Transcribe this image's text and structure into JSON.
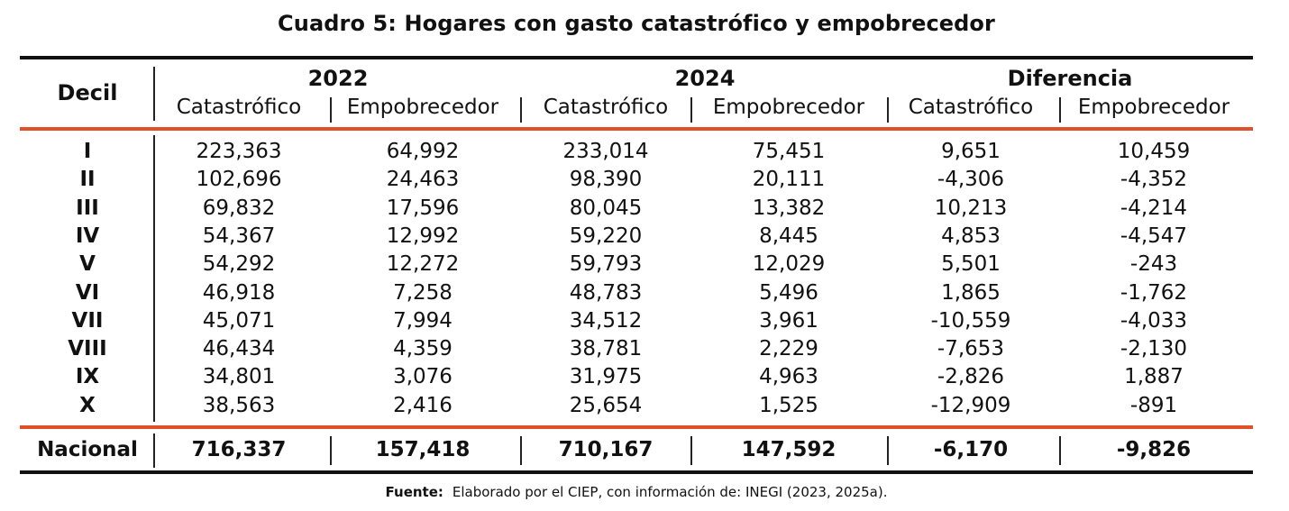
{
  "title": "Cuadro 5: Hogares con gasto catastrófico y empobrecedor",
  "header": {
    "decil": "Decil",
    "groups": [
      "2022",
      "2024",
      "Diferencia"
    ],
    "subcolumns": [
      "Catastrófico",
      "Empobrecedor",
      "Catastrófico",
      "Empobrecedor",
      "Catastrófico",
      "Empobrecedor"
    ]
  },
  "rows": [
    {
      "decil": "I",
      "values": [
        "223,363",
        "64,992",
        "233,014",
        "75,451",
        "9,651",
        "10,459"
      ]
    },
    {
      "decil": "II",
      "values": [
        "102,696",
        "24,463",
        "98,390",
        "20,111",
        "-4,306",
        "-4,352"
      ]
    },
    {
      "decil": "III",
      "values": [
        "69,832",
        "17,596",
        "80,045",
        "13,382",
        "10,213",
        "-4,214"
      ]
    },
    {
      "decil": "IV",
      "values": [
        "54,367",
        "12,992",
        "59,220",
        "8,445",
        "4,853",
        "-4,547"
      ]
    },
    {
      "decil": "V",
      "values": [
        "54,292",
        "12,272",
        "59,793",
        "12,029",
        "5,501",
        "-243"
      ]
    },
    {
      "decil": "VI",
      "values": [
        "46,918",
        "7,258",
        "48,783",
        "5,496",
        "1,865",
        "-1,762"
      ]
    },
    {
      "decil": "VII",
      "values": [
        "45,071",
        "7,994",
        "34,512",
        "3,961",
        "-10,559",
        "-4,033"
      ]
    },
    {
      "decil": "VIII",
      "values": [
        "46,434",
        "4,359",
        "38,781",
        "2,229",
        "-7,653",
        "-2,130"
      ]
    },
    {
      "decil": "IX",
      "values": [
        "34,801",
        "3,076",
        "31,975",
        "4,963",
        "-2,826",
        "1,887"
      ]
    },
    {
      "decil": "X",
      "values": [
        "38,563",
        "2,416",
        "25,654",
        "1,525",
        "-12,909",
        "-891"
      ]
    }
  ],
  "total": {
    "label": "Nacional",
    "values": [
      "716,337",
      "157,418",
      "710,167",
      "147,592",
      "-6,170",
      "-9,826"
    ]
  },
  "source": {
    "label": "Fuente:",
    "text": "Elaborado por el CIEP, con información de: INEGI (2023, 2025a)."
  },
  "colors": {
    "accent_rule": "#e2502a",
    "border": "#111111"
  }
}
